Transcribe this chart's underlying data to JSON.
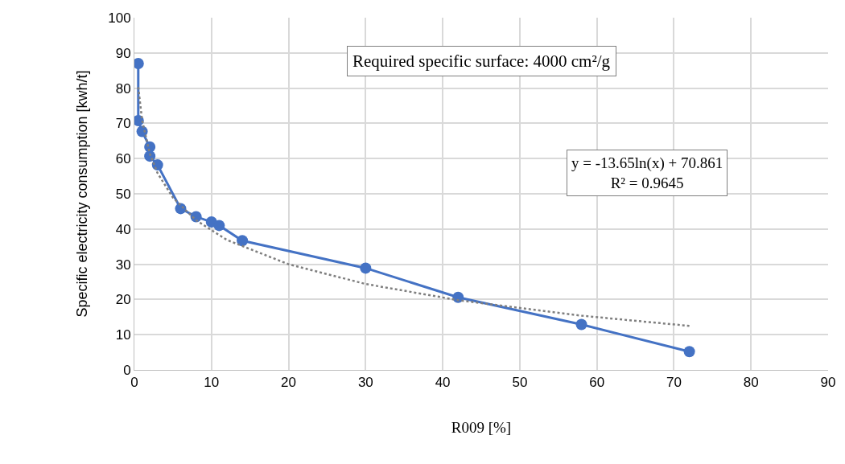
{
  "chart_data": {
    "type": "line",
    "xlabel": "R009 [%]",
    "ylabel": "Specific electricity consumption [kwh/t]",
    "xlim": [
      0,
      90
    ],
    "xticks": [
      0,
      10,
      20,
      30,
      40,
      50,
      60,
      70,
      80,
      90
    ],
    "ylim": [
      0,
      100
    ],
    "yticks": [
      0,
      10,
      20,
      30,
      40,
      50,
      60,
      70,
      80,
      90,
      100
    ],
    "grid": true,
    "marker": "circle",
    "series": [
      {
        "color": "#4472c4",
        "line_style": "solid",
        "x": [
          0.5,
          0.5,
          1,
          2,
          2,
          3,
          6,
          8,
          10,
          11,
          14,
          30,
          42,
          58,
          72
        ],
        "values": [
          87,
          70.8,
          67.7,
          63.3,
          60.7,
          58.2,
          45.8,
          43.5,
          42,
          41,
          36.7,
          28.9,
          20.6,
          12.9,
          5.2
        ]
      },
      {
        "color": "#7f7f7f",
        "marker": "none",
        "line_style": "dotted",
        "x": [
          0.5,
          1,
          2,
          3,
          5,
          8,
          12,
          20,
          30,
          42,
          58,
          72
        ],
        "values": [
          80.3,
          70.9,
          61.4,
          55.9,
          48.9,
          42.5,
          36.9,
          30.0,
          24.4,
          19.8,
          15.4,
          12.5
        ]
      }
    ],
    "annotations": [
      "Required specific surface: 4000 cm²/g",
      "y = -13.65ln(x) + 70.861",
      "R² = 0.9645"
    ]
  }
}
